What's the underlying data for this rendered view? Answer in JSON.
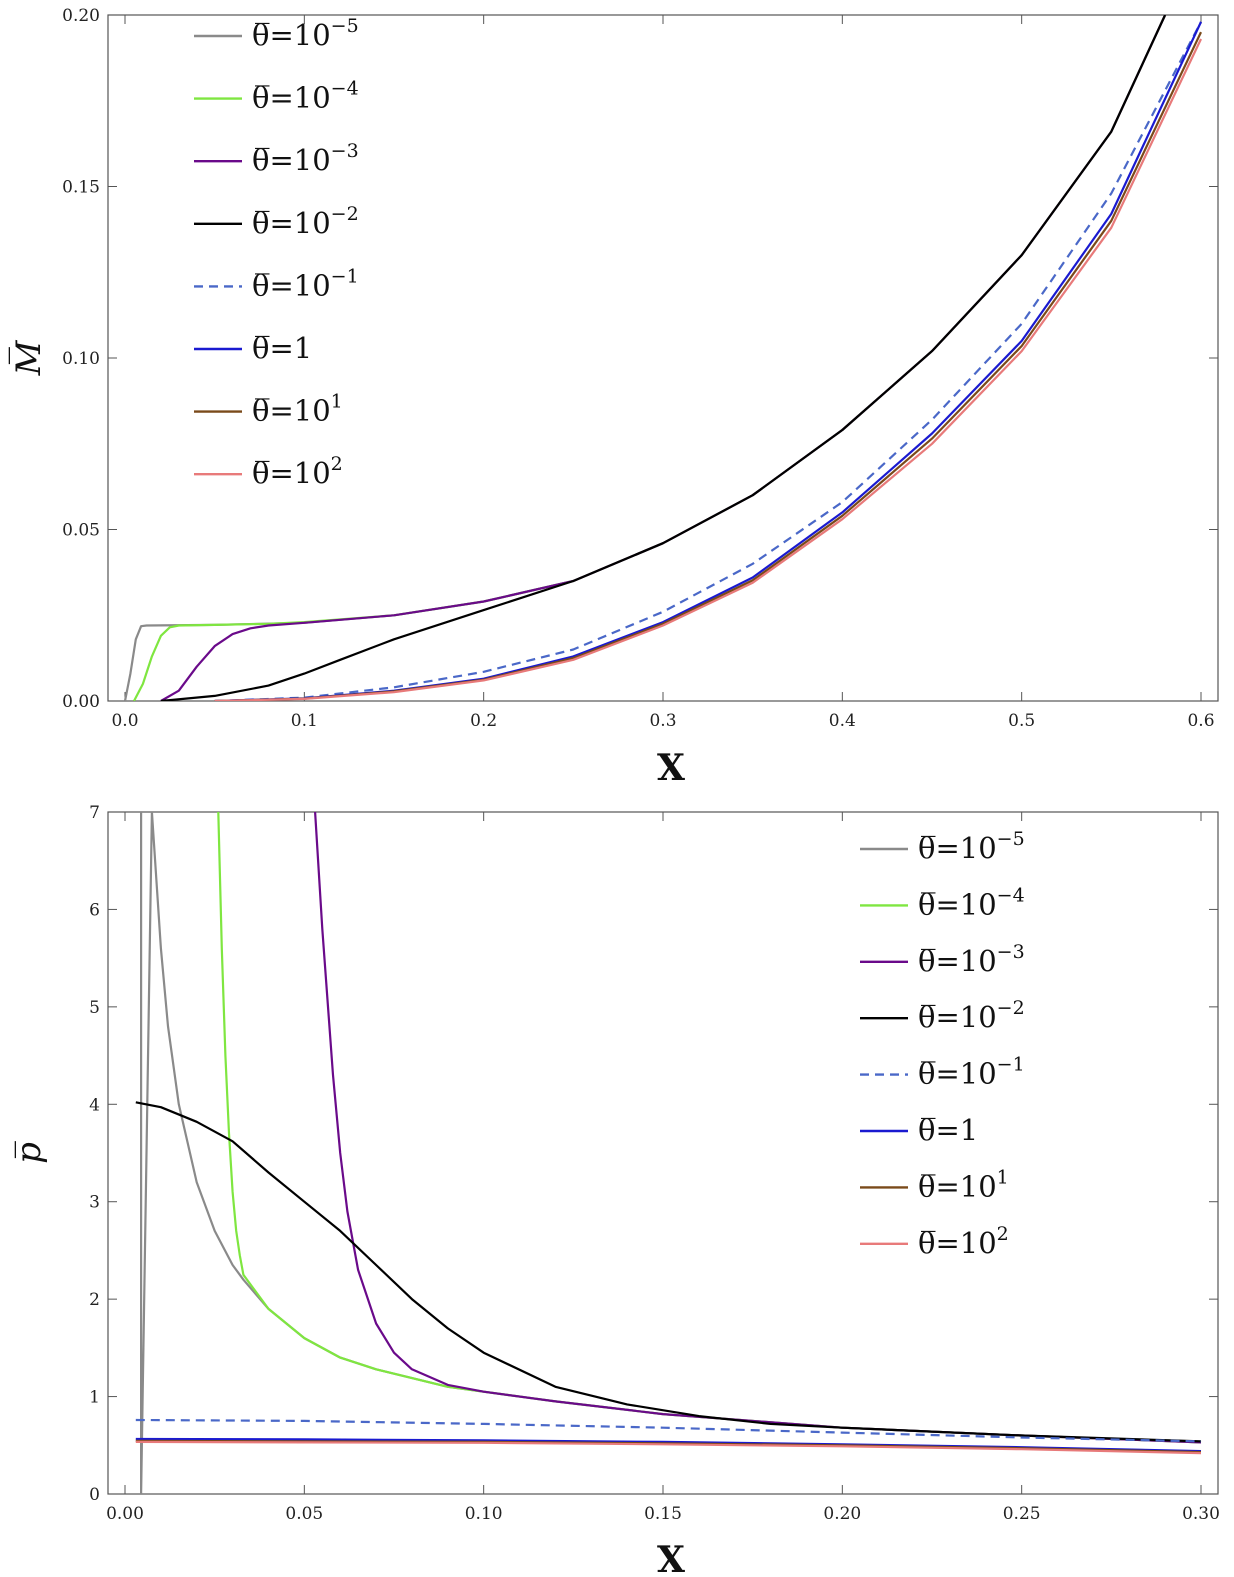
{
  "chart_data": [
    {
      "type": "line",
      "xlabel": "X",
      "ylabel": "M̅",
      "xlim": [
        0.0,
        0.6
      ],
      "ylim": [
        0.0,
        0.2
      ],
      "xticks": [
        "0.0",
        "0.1",
        "0.2",
        "0.3",
        "0.4",
        "0.5",
        "0.6"
      ],
      "yticks": [
        "0.00",
        "0.05",
        "0.10",
        "0.15",
        "0.20"
      ],
      "legend_position": "top-left",
      "series": [
        {
          "name": "θ̅=10^-5",
          "base": "θ̅=10",
          "exp": "−5",
          "color": "#8a8a8a",
          "dash": false,
          "x": [
            0.0,
            0.003,
            0.006,
            0.009,
            0.012,
            0.05,
            0.1,
            0.15,
            0.2,
            0.25,
            0.3,
            0.35,
            0.4,
            0.45,
            0.5,
            0.55,
            0.58
          ],
          "y": [
            0.0,
            0.008,
            0.018,
            0.0218,
            0.022,
            0.0222,
            0.0228,
            0.025,
            0.029,
            0.035,
            0.046,
            0.06,
            0.079,
            0.102,
            0.13,
            0.166,
            0.2
          ]
        },
        {
          "name": "θ̅=10^-4",
          "base": "θ̅=10",
          "exp": "−4",
          "color": "#7fe640",
          "dash": false,
          "x": [
            0.005,
            0.01,
            0.015,
            0.02,
            0.025,
            0.03,
            0.05,
            0.08,
            0.1,
            0.15,
            0.2,
            0.25,
            0.3,
            0.35,
            0.4,
            0.45,
            0.5,
            0.55,
            0.58
          ],
          "y": [
            0.0,
            0.005,
            0.013,
            0.019,
            0.0215,
            0.022,
            0.0222,
            0.0225,
            0.023,
            0.025,
            0.029,
            0.035,
            0.046,
            0.06,
            0.079,
            0.102,
            0.13,
            0.166,
            0.2
          ]
        },
        {
          "name": "θ̅=10^-3",
          "base": "θ̅=10",
          "exp": "−3",
          "color": "#6a0a8a",
          "dash": false,
          "x": [
            0.02,
            0.03,
            0.04,
            0.05,
            0.06,
            0.07,
            0.08,
            0.1,
            0.15,
            0.2,
            0.25,
            0.3,
            0.35,
            0.4,
            0.45,
            0.5,
            0.55,
            0.58
          ],
          "y": [
            0.0,
            0.003,
            0.01,
            0.016,
            0.0195,
            0.0212,
            0.022,
            0.0228,
            0.025,
            0.029,
            0.035,
            0.046,
            0.06,
            0.079,
            0.102,
            0.13,
            0.166,
            0.2
          ]
        },
        {
          "name": "θ̅=10^-2",
          "base": "θ̅=10",
          "exp": "−2",
          "color": "#000000",
          "dash": false,
          "x": [
            0.02,
            0.05,
            0.08,
            0.1,
            0.12,
            0.15,
            0.2,
            0.25,
            0.3,
            0.35,
            0.4,
            0.45,
            0.5,
            0.55,
            0.58
          ],
          "y": [
            0.0,
            0.0015,
            0.0045,
            0.008,
            0.012,
            0.018,
            0.0265,
            0.035,
            0.046,
            0.06,
            0.079,
            0.102,
            0.13,
            0.166,
            0.2
          ]
        },
        {
          "name": "θ̅=10^-1",
          "base": "θ̅=10",
          "exp": "−1",
          "color": "#4a68c8",
          "dash": true,
          "x": [
            0.05,
            0.1,
            0.15,
            0.2,
            0.25,
            0.3,
            0.35,
            0.4,
            0.45,
            0.5,
            0.55,
            0.6
          ],
          "y": [
            0.0,
            0.001,
            0.004,
            0.0085,
            0.015,
            0.026,
            0.04,
            0.058,
            0.082,
            0.11,
            0.148,
            0.198
          ]
        },
        {
          "name": "θ̅=1",
          "base": "θ̅=1",
          "exp": "",
          "color": "#1a1ad0",
          "dash": false,
          "x": [
            0.05,
            0.1,
            0.15,
            0.2,
            0.25,
            0.3,
            0.35,
            0.4,
            0.45,
            0.5,
            0.55,
            0.6
          ],
          "y": [
            0.0,
            0.0008,
            0.003,
            0.0065,
            0.013,
            0.023,
            0.036,
            0.055,
            0.078,
            0.105,
            0.142,
            0.198
          ]
        },
        {
          "name": "θ̅=10^1",
          "base": "θ̅=10",
          "exp": "1",
          "color": "#7a4a1a",
          "dash": false,
          "x": [
            0.05,
            0.1,
            0.15,
            0.2,
            0.25,
            0.3,
            0.35,
            0.4,
            0.45,
            0.5,
            0.55,
            0.6
          ],
          "y": [
            0.0,
            0.0007,
            0.0028,
            0.0062,
            0.0125,
            0.0225,
            0.0352,
            0.054,
            0.0765,
            0.1035,
            0.14,
            0.195
          ]
        },
        {
          "name": "θ̅=10^2",
          "base": "θ̅=10",
          "exp": "2",
          "color": "#e87a7a",
          "dash": false,
          "x": [
            0.05,
            0.1,
            0.15,
            0.2,
            0.25,
            0.3,
            0.35,
            0.4,
            0.45,
            0.5,
            0.55,
            0.6
          ],
          "y": [
            0.0,
            0.0006,
            0.0026,
            0.006,
            0.012,
            0.022,
            0.0345,
            0.053,
            0.075,
            0.102,
            0.138,
            0.193
          ]
        }
      ]
    },
    {
      "type": "line",
      "xlabel": "X",
      "ylabel": "p̅",
      "xlim": [
        0.0,
        0.3
      ],
      "ylim": [
        0,
        7
      ],
      "xticks": [
        "0.00",
        "0.05",
        "0.10",
        "0.15",
        "0.20",
        "0.25",
        "0.30"
      ],
      "yticks": [
        "0",
        "1",
        "2",
        "3",
        "4",
        "5",
        "6",
        "7"
      ],
      "legend_position": "top-right",
      "series": [
        {
          "name": "θ̅=10^-5",
          "base": "θ̅=10",
          "exp": "−5",
          "color": "#8a8a8a",
          "dash": false,
          "x": [
            0.0045,
            0.0045,
            0.0045,
            0.0075,
            0.01,
            0.012,
            0.015,
            0.02,
            0.025,
            0.03,
            0.033,
            0.04,
            0.05,
            0.06,
            0.07,
            0.09,
            0.12,
            0.15,
            0.2,
            0.25,
            0.3
          ],
          "y": [
            0.0,
            7.0,
            0.0,
            7.0,
            5.6,
            4.8,
            4.0,
            3.2,
            2.7,
            2.35,
            2.2,
            1.9,
            1.6,
            1.4,
            1.28,
            1.1,
            0.95,
            0.82,
            0.68,
            0.6,
            0.53
          ]
        },
        {
          "name": "θ̅=10^-4",
          "base": "θ̅=10",
          "exp": "−4",
          "color": "#7fe640",
          "dash": false,
          "x": [
            0.026,
            0.027,
            0.028,
            0.029,
            0.03,
            0.031,
            0.032,
            0.033,
            0.04,
            0.05,
            0.06,
            0.07,
            0.09,
            0.12,
            0.15,
            0.2,
            0.25,
            0.3
          ],
          "y": [
            7.0,
            5.6,
            4.5,
            3.7,
            3.1,
            2.7,
            2.45,
            2.25,
            1.9,
            1.6,
            1.4,
            1.28,
            1.1,
            0.95,
            0.82,
            0.68,
            0.6,
            0.53
          ]
        },
        {
          "name": "θ̅=10^-3",
          "base": "θ̅=10",
          "exp": "−3",
          "color": "#6a0a8a",
          "dash": false,
          "x": [
            0.053,
            0.055,
            0.058,
            0.06,
            0.062,
            0.065,
            0.07,
            0.075,
            0.08,
            0.09,
            0.1,
            0.12,
            0.15,
            0.2,
            0.25,
            0.3
          ],
          "y": [
            7.0,
            5.8,
            4.3,
            3.5,
            2.9,
            2.3,
            1.75,
            1.45,
            1.28,
            1.12,
            1.05,
            0.95,
            0.82,
            0.68,
            0.6,
            0.53
          ]
        },
        {
          "name": "θ̅=10^-2",
          "base": "θ̅=10",
          "exp": "−2",
          "color": "#000000",
          "dash": false,
          "x": [
            0.003,
            0.01,
            0.02,
            0.03,
            0.04,
            0.05,
            0.06,
            0.07,
            0.08,
            0.09,
            0.1,
            0.12,
            0.14,
            0.16,
            0.18,
            0.2,
            0.25,
            0.3
          ],
          "y": [
            4.02,
            3.97,
            3.82,
            3.62,
            3.3,
            3.0,
            2.7,
            2.35,
            2.0,
            1.7,
            1.45,
            1.1,
            0.92,
            0.8,
            0.72,
            0.68,
            0.6,
            0.54
          ]
        },
        {
          "name": "θ̅=10^-1",
          "base": "θ̅=10",
          "exp": "−1",
          "color": "#4a68c8",
          "dash": true,
          "x": [
            0.003,
            0.05,
            0.1,
            0.15,
            0.2,
            0.25,
            0.3
          ],
          "y": [
            0.76,
            0.75,
            0.72,
            0.68,
            0.63,
            0.58,
            0.54
          ]
        },
        {
          "name": "θ̅=1",
          "base": "θ̅=1",
          "exp": "",
          "color": "#1a1ad0",
          "dash": false,
          "x": [
            0.003,
            0.05,
            0.1,
            0.15,
            0.2,
            0.25,
            0.3
          ],
          "y": [
            0.565,
            0.56,
            0.55,
            0.535,
            0.51,
            0.48,
            0.44
          ]
        },
        {
          "name": "θ̅=10^1",
          "base": "θ̅=10",
          "exp": "1",
          "color": "#7a4a1a",
          "dash": false,
          "x": [
            0.003,
            0.05,
            0.1,
            0.15,
            0.2,
            0.25,
            0.3
          ],
          "y": [
            0.545,
            0.54,
            0.535,
            0.52,
            0.5,
            0.47,
            0.43
          ]
        },
        {
          "name": "θ̅=10^2",
          "base": "θ̅=10",
          "exp": "2",
          "color": "#e87a7a",
          "dash": false,
          "x": [
            0.003,
            0.05,
            0.1,
            0.15,
            0.2,
            0.25,
            0.3
          ],
          "y": [
            0.535,
            0.53,
            0.525,
            0.51,
            0.49,
            0.46,
            0.42
          ]
        }
      ]
    }
  ]
}
